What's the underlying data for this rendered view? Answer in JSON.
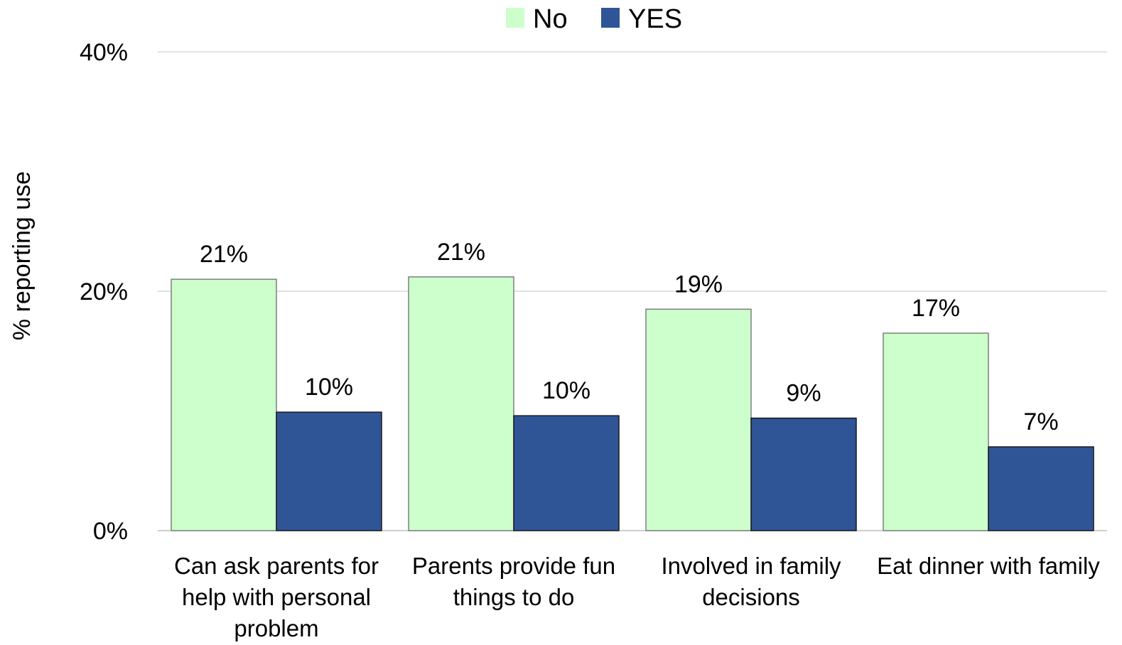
{
  "chart_data": {
    "type": "bar",
    "title": "",
    "xlabel": "",
    "ylabel": "%  reporting use",
    "ylim": [
      0,
      40
    ],
    "yticks": [
      0,
      20,
      40
    ],
    "ytick_labels": [
      "0%",
      "20%",
      "40%"
    ],
    "grid": true,
    "legend_position": "top",
    "categories": [
      "Can ask parents for help with personal problem",
      "Parents provide fun things to do",
      "Involved in family decisions",
      "Eat dinner with family"
    ],
    "category_lines": [
      [
        "Can ask parents for",
        "help with personal",
        "problem"
      ],
      [
        "Parents provide fun",
        "things to do"
      ],
      [
        "Involved in family",
        "decisions"
      ],
      [
        "Eat dinner with family"
      ]
    ],
    "series": [
      {
        "name": "No",
        "color": "#ccffcc",
        "values": [
          21,
          21.2,
          18.5,
          16.5
        ],
        "labels": [
          "21%",
          "21%",
          "19%",
          "17%"
        ]
      },
      {
        "name": "YES",
        "color": "#2f5597",
        "values": [
          9.9,
          9.6,
          9.4,
          7.0
        ],
        "labels": [
          "10%",
          "10%",
          "9%",
          "7%"
        ]
      }
    ]
  }
}
